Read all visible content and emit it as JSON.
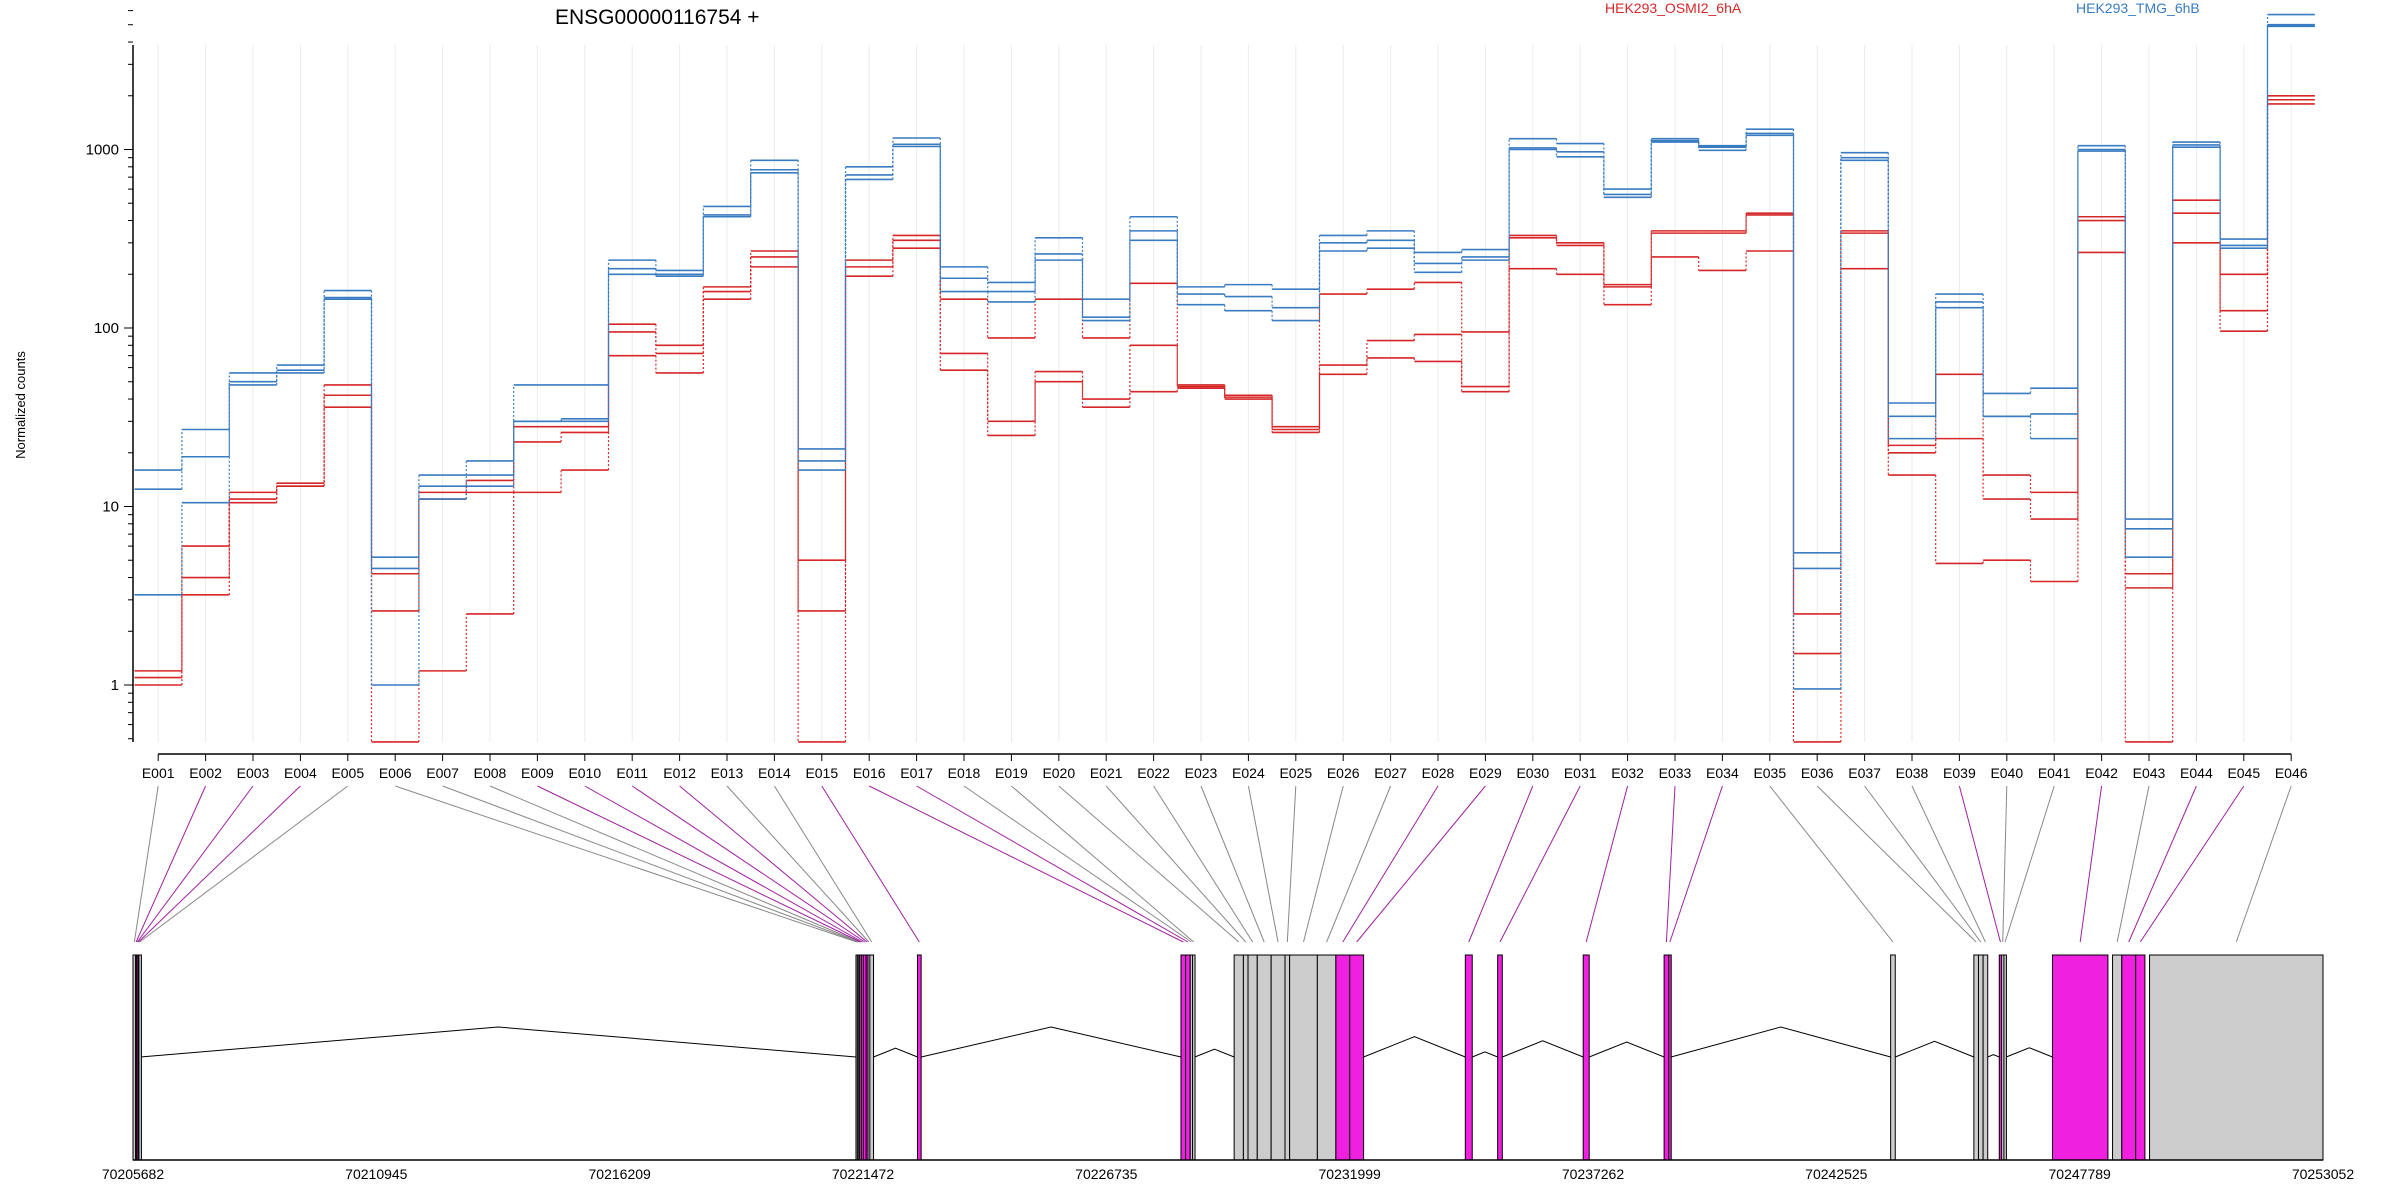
{
  "chart_data": {
    "type": "line",
    "title": "ENSG00000116754 +",
    "ylabel": "Normalized counts",
    "yscale": "log",
    "ylim": [
      0.5,
      8000
    ],
    "yticks": [
      1,
      10,
      100,
      1000
    ],
    "ytick_labels": [
      "1",
      "10",
      "100",
      "1000"
    ],
    "grid": "vertical-light",
    "legend": [
      {
        "name": "HEK293_OSMI2_6hA",
        "color": "#d62728"
      },
      {
        "name": "HEK293_TMG_6hB",
        "color": "#3a7cc2"
      }
    ],
    "categories": [
      "E001",
      "E002",
      "E003",
      "E004",
      "E005",
      "E006",
      "E007",
      "E008",
      "E009",
      "E010",
      "E011",
      "E012",
      "E013",
      "E014",
      "E015",
      "E016",
      "E017",
      "E018",
      "E019",
      "E020",
      "E021",
      "E022",
      "E023",
      "E024",
      "E025",
      "E026",
      "E027",
      "E028",
      "E029",
      "E030",
      "E031",
      "E032",
      "E033",
      "E034",
      "E035",
      "E036",
      "E037",
      "E038",
      "E039",
      "E040",
      "E041",
      "E042",
      "E043",
      "E044",
      "E045",
      "E046"
    ],
    "series": [
      {
        "group": "HEK293_OSMI2_6hA",
        "color": "#d62728",
        "values": [
          1.2,
          4,
          12,
          13.5,
          48,
          4.2,
          12,
          14,
          28,
          28,
          105,
          80,
          170,
          270,
          5,
          240,
          330,
          145,
          88,
          145,
          88,
          178,
          48,
          42,
          28,
          155,
          165,
          180,
          95,
          330,
          300,
          175,
          350,
          350,
          440,
          2.5,
          350,
          22,
          55,
          15,
          12,
          420,
          4.2,
          520,
          200,
          2000
        ]
      },
      {
        "group": "HEK293_OSMI2_6hA",
        "color": "#d62728",
        "values": [
          1.1,
          6,
          11,
          13,
          42,
          2.6,
          11,
          12,
          23,
          26,
          95,
          72,
          160,
          250,
          2.6,
          220,
          310,
          72,
          30,
          57,
          40,
          80,
          47,
          41,
          27,
          62,
          85,
          92,
          47,
          320,
          290,
          170,
          340,
          340,
          430,
          1.5,
          340,
          20,
          24,
          11,
          8.5,
          400,
          3.5,
          440,
          125,
          1900
        ]
      },
      {
        "group": "HEK293_OSMI2_6hA",
        "color": "#d62728",
        "values": [
          1.0,
          3.2,
          10.5,
          13,
          36,
          0.48,
          1.2,
          2.5,
          12,
          16,
          70,
          56,
          145,
          220,
          0.48,
          195,
          280,
          58,
          25,
          50,
          36,
          44,
          46,
          40,
          26,
          55,
          68,
          65,
          44,
          215,
          200,
          135,
          250,
          210,
          270,
          0.48,
          215,
          15,
          4.8,
          5,
          3.8,
          265,
          0.48,
          300,
          96,
          1800
        ]
      },
      {
        "group": "HEK293_TMG_6hB",
        "color": "#3a7cc2",
        "values": [
          16,
          27,
          56,
          62,
          162,
          5.2,
          15,
          18,
          48,
          48,
          240,
          210,
          480,
          870,
          21,
          800,
          1160,
          220,
          180,
          320,
          145,
          420,
          170,
          175,
          165,
          330,
          350,
          265,
          275,
          1150,
          1080,
          600,
          1150,
          1050,
          1300,
          5.5,
          960,
          38,
          155,
          43,
          46,
          1050,
          8.5,
          1100,
          315,
          5700
        ]
      },
      {
        "group": "HEK293_TMG_6hB",
        "color": "#3a7cc2",
        "values": [
          12.5,
          19,
          50,
          58,
          148,
          4.5,
          13,
          15,
          30,
          31,
          215,
          200,
          430,
          770,
          18,
          720,
          1070,
          190,
          160,
          260,
          115,
          350,
          155,
          150,
          130,
          300,
          310,
          230,
          250,
          1020,
          970,
          560,
          1120,
          1030,
          1230,
          4.5,
          900,
          32,
          140,
          32,
          33,
          1000,
          7.5,
          1060,
          290,
          5000
        ]
      },
      {
        "group": "HEK293_TMG_6hB",
        "color": "#3a7cc2",
        "values": [
          3.2,
          10.5,
          48,
          56,
          145,
          1.0,
          11,
          13,
          30,
          30,
          200,
          195,
          420,
          740,
          16,
          680,
          1040,
          160,
          140,
          240,
          110,
          310,
          135,
          125,
          110,
          270,
          280,
          205,
          240,
          1000,
          910,
          540,
          1100,
          990,
          1200,
          0.95,
          870,
          24,
          130,
          32,
          24,
          980,
          5.2,
          1030,
          280,
          4900
        ]
      }
    ],
    "x_axis": {
      "tick_labels": [
        "70205682",
        "70210945",
        "70216209",
        "70221472",
        "70226735",
        "70231999",
        "70237262",
        "70242525",
        "70247789",
        "70253052"
      ],
      "range": [
        70205682,
        70253052
      ]
    },
    "exon_track": {
      "exons": [
        {
          "id": "E001",
          "start": 70205682,
          "end": 70205740,
          "significant": false
        },
        {
          "id": "E002",
          "start": 70205740,
          "end": 70205760,
          "significant": true
        },
        {
          "id": "E003",
          "start": 70205760,
          "end": 70205790,
          "significant": true
        },
        {
          "id": "E004",
          "start": 70205790,
          "end": 70205810,
          "significant": true
        },
        {
          "id": "E005",
          "start": 70205810,
          "end": 70205840,
          "significant": false
        },
        {
          "id": "E006",
          "start": 70221320,
          "end": 70221350,
          "significant": false
        },
        {
          "id": "E007",
          "start": 70221350,
          "end": 70221380,
          "significant": false
        },
        {
          "id": "E008",
          "start": 70221380,
          "end": 70221400,
          "significant": false
        },
        {
          "id": "E009",
          "start": 70221400,
          "end": 70221440,
          "significant": true
        },
        {
          "id": "E010",
          "start": 70221440,
          "end": 70221480,
          "significant": true
        },
        {
          "id": "E011",
          "start": 70221480,
          "end": 70221540,
          "significant": true
        },
        {
          "id": "E012",
          "start": 70221540,
          "end": 70221580,
          "significant": true
        },
        {
          "id": "E013",
          "start": 70221580,
          "end": 70221620,
          "significant": false
        },
        {
          "id": "E014",
          "start": 70221620,
          "end": 70221700,
          "significant": false
        },
        {
          "id": "E015",
          "start": 70222650,
          "end": 70222730,
          "significant": true
        },
        {
          "id": "E016",
          "start": 70228350,
          "end": 70228450,
          "significant": true
        },
        {
          "id": "E017",
          "start": 70228450,
          "end": 70228550,
          "significant": true
        },
        {
          "id": "E018",
          "start": 70228550,
          "end": 70228600,
          "significant": false
        },
        {
          "id": "E019",
          "start": 70228600,
          "end": 70228650,
          "significant": false
        },
        {
          "id": "E020",
          "start": 70229500,
          "end": 70229700,
          "significant": false
        },
        {
          "id": "E021",
          "start": 70229700,
          "end": 70229800,
          "significant": false
        },
        {
          "id": "E022",
          "start": 70229800,
          "end": 70230000,
          "significant": false
        },
        {
          "id": "E023",
          "start": 70230000,
          "end": 70230300,
          "significant": false
        },
        {
          "id": "E024",
          "start": 70230300,
          "end": 70230600,
          "significant": false
        },
        {
          "id": "E025",
          "start": 70230600,
          "end": 70230700,
          "significant": false
        },
        {
          "id": "E026",
          "start": 70230700,
          "end": 70231300,
          "significant": false
        },
        {
          "id": "E027",
          "start": 70231300,
          "end": 70231700,
          "significant": false
        },
        {
          "id": "E028",
          "start": 70231700,
          "end": 70232000,
          "significant": true
        },
        {
          "id": "E029",
          "start": 70232000,
          "end": 70232300,
          "significant": true
        },
        {
          "id": "E030",
          "start": 70234500,
          "end": 70234650,
          "significant": true
        },
        {
          "id": "E031",
          "start": 70235200,
          "end": 70235300,
          "significant": true
        },
        {
          "id": "E032",
          "start": 70237050,
          "end": 70237180,
          "significant": true
        },
        {
          "id": "E033",
          "start": 70238800,
          "end": 70238900,
          "significant": true
        },
        {
          "id": "E034",
          "start": 70238900,
          "end": 70238950,
          "significant": true
        },
        {
          "id": "E035",
          "start": 70243700,
          "end": 70243800,
          "significant": false
        },
        {
          "id": "E036",
          "start": 70245500,
          "end": 70245600,
          "significant": false
        },
        {
          "id": "E037",
          "start": 70245600,
          "end": 70245700,
          "significant": false
        },
        {
          "id": "E038",
          "start": 70245700,
          "end": 70245800,
          "significant": false
        },
        {
          "id": "E039",
          "start": 70246050,
          "end": 70246100,
          "significant": true
        },
        {
          "id": "E040",
          "start": 70246100,
          "end": 70246150,
          "significant": false
        },
        {
          "id": "E041",
          "start": 70246150,
          "end": 70246200,
          "significant": false
        },
        {
          "id": "E042",
          "start": 70247200,
          "end": 70248400,
          "significant": true
        },
        {
          "id": "E043",
          "start": 70248500,
          "end": 70248700,
          "significant": false
        },
        {
          "id": "E044",
          "start": 70248700,
          "end": 70249000,
          "significant": true
        },
        {
          "id": "E045",
          "start": 70249000,
          "end": 70249200,
          "significant": true
        },
        {
          "id": "E046",
          "start": 70249300,
          "end": 70253052,
          "significant": false
        }
      ],
      "colors": {
        "significant": "#f020e0",
        "normal": "#cccccc",
        "link_significant": "#a020a0",
        "link_normal": "#888888"
      }
    }
  }
}
